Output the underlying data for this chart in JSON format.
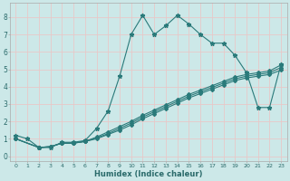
{
  "xlabel": "Humidex (Indice chaleur)",
  "background_color": "#cce8e8",
  "grid_color": "#e8c8c8",
  "line_color": "#2a7a7a",
  "xlim": [
    -0.5,
    23.5
  ],
  "ylim": [
    -0.3,
    8.8
  ],
  "xticks": [
    0,
    1,
    2,
    3,
    4,
    5,
    6,
    7,
    8,
    9,
    10,
    11,
    12,
    13,
    14,
    15,
    16,
    17,
    18,
    19,
    20,
    21,
    22,
    23
  ],
  "yticks": [
    0,
    1,
    2,
    3,
    4,
    5,
    6,
    7,
    8
  ],
  "line1_x": [
    0,
    1,
    2,
    3,
    4,
    5,
    6,
    7,
    8,
    9,
    10,
    11,
    12,
    13,
    14,
    15,
    16,
    17,
    18,
    19,
    20,
    21,
    22,
    23
  ],
  "line1_y": [
    1.2,
    1.0,
    0.5,
    0.5,
    0.8,
    0.8,
    0.9,
    1.6,
    2.6,
    4.6,
    7.0,
    8.1,
    7.0,
    7.5,
    8.1,
    7.6,
    7.0,
    6.5,
    6.5,
    5.8,
    4.8,
    2.8,
    2.8,
    5.3
  ],
  "line2_x": [
    0,
    2,
    3,
    4,
    5,
    6,
    7,
    8,
    9,
    10,
    11,
    12,
    13,
    14,
    15,
    16,
    17,
    18,
    19,
    20,
    21,
    22,
    23
  ],
  "line2_y": [
    1.0,
    0.5,
    0.55,
    0.75,
    0.75,
    0.85,
    1.1,
    1.4,
    1.7,
    2.0,
    2.35,
    2.65,
    2.95,
    3.25,
    3.55,
    3.8,
    4.05,
    4.3,
    4.55,
    4.7,
    4.8,
    4.9,
    5.25
  ],
  "line3_x": [
    0,
    2,
    3,
    4,
    5,
    6,
    7,
    8,
    9,
    10,
    11,
    12,
    13,
    14,
    15,
    16,
    17,
    18,
    19,
    20,
    21,
    22,
    23
  ],
  "line3_y": [
    1.0,
    0.5,
    0.55,
    0.75,
    0.75,
    0.85,
    1.05,
    1.3,
    1.6,
    1.9,
    2.25,
    2.55,
    2.85,
    3.15,
    3.45,
    3.7,
    3.95,
    4.2,
    4.45,
    4.6,
    4.7,
    4.8,
    5.1
  ],
  "line4_x": [
    0,
    2,
    3,
    4,
    5,
    6,
    7,
    8,
    9,
    10,
    11,
    12,
    13,
    14,
    15,
    16,
    17,
    18,
    19,
    20,
    21,
    22,
    23
  ],
  "line4_y": [
    1.0,
    0.5,
    0.55,
    0.75,
    0.75,
    0.85,
    1.0,
    1.25,
    1.5,
    1.8,
    2.15,
    2.45,
    2.75,
    3.05,
    3.35,
    3.6,
    3.85,
    4.1,
    4.35,
    4.5,
    4.6,
    4.7,
    4.95
  ]
}
